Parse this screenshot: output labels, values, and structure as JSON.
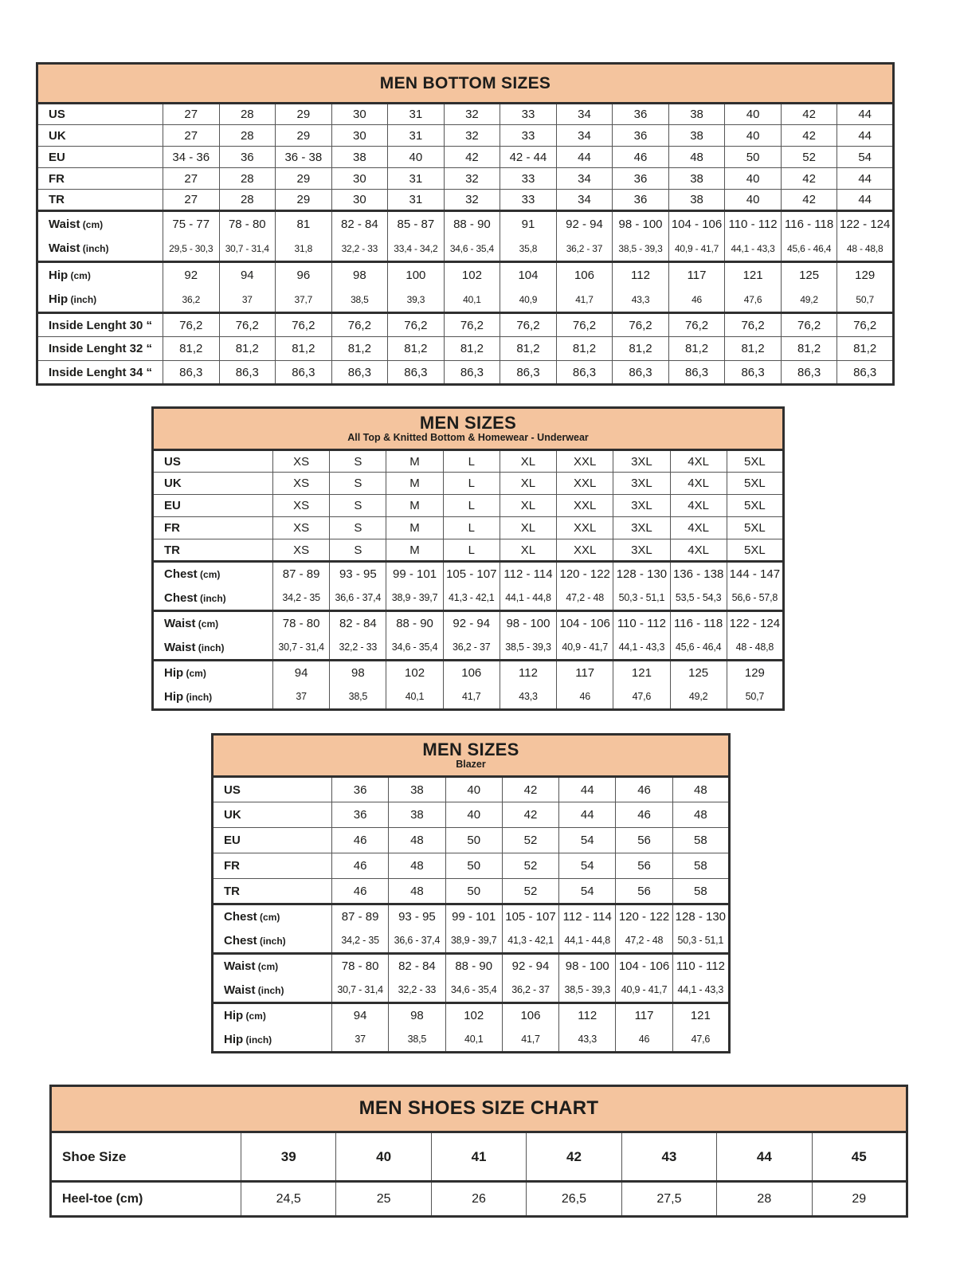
{
  "colors": {
    "header_bg": "#f4c49e",
    "text": "#1d1d1b",
    "border_thin": "#555555",
    "border_strong": "#2f2f2f",
    "page_bg": "#ffffff"
  },
  "tables": {
    "bottoms": {
      "title": "MEN BOTTOM SIZES",
      "rows": [
        {
          "label": "US",
          "kind": "size",
          "values": [
            "27",
            "28",
            "29",
            "30",
            "31",
            "32",
            "33",
            "34",
            "36",
            "38",
            "40",
            "42",
            "44"
          ]
        },
        {
          "label": "UK",
          "kind": "size",
          "values": [
            "27",
            "28",
            "29",
            "30",
            "31",
            "32",
            "33",
            "34",
            "36",
            "38",
            "40",
            "42",
            "44"
          ]
        },
        {
          "label": "EU",
          "kind": "size",
          "values": [
            "34 - 36",
            "36",
            "36 - 38",
            "38",
            "40",
            "42",
            "42 - 44",
            "44",
            "46",
            "48",
            "50",
            "52",
            "54"
          ]
        },
        {
          "label": "FR",
          "kind": "size",
          "values": [
            "27",
            "28",
            "29",
            "30",
            "31",
            "32",
            "33",
            "34",
            "36",
            "38",
            "40",
            "42",
            "44"
          ]
        },
        {
          "label": "TR",
          "kind": "size",
          "values": [
            "27",
            "28",
            "29",
            "30",
            "31",
            "32",
            "33",
            "34",
            "36",
            "38",
            "40",
            "42",
            "44"
          ]
        },
        {
          "label": "Waist",
          "unit": "(cm)",
          "kind": "cm",
          "group": true,
          "values": [
            "75 - 77",
            "78 - 80",
            "81",
            "82 - 84",
            "85 - 87",
            "88 - 90",
            "91",
            "92 - 94",
            "98 - 100",
            "104 - 106",
            "110 - 112",
            "116 - 118",
            "122 - 124"
          ]
        },
        {
          "label": "Waist",
          "unit": "(inch)",
          "kind": "inch",
          "values": [
            "29,5 - 30,3",
            "30,7 - 31,4",
            "31,8",
            "32,2 - 33",
            "33,4 - 34,2",
            "34,6 - 35,4",
            "35,8",
            "36,2 - 37",
            "38,5 - 39,3",
            "40,9 - 41,7",
            "44,1 - 43,3",
            "45,6 - 46,4",
            "48 - 48,8"
          ]
        },
        {
          "label": "Hip",
          "unit": "(cm)",
          "kind": "cm",
          "group": true,
          "values": [
            "92",
            "94",
            "96",
            "98",
            "100",
            "102",
            "104",
            "106",
            "112",
            "117",
            "121",
            "125",
            "129"
          ]
        },
        {
          "label": "Hip",
          "unit": "(inch)",
          "kind": "inch",
          "values": [
            "36,2",
            "37",
            "37,7",
            "38,5",
            "39,3",
            "40,1",
            "40,9",
            "41,7",
            "43,3",
            "46",
            "47,6",
            "49,2",
            "50,7"
          ]
        },
        {
          "label": "Inside Lenght 30 “",
          "kind": "il",
          "group": true,
          "values": [
            "76,2",
            "76,2",
            "76,2",
            "76,2",
            "76,2",
            "76,2",
            "76,2",
            "76,2",
            "76,2",
            "76,2",
            "76,2",
            "76,2",
            "76,2"
          ]
        },
        {
          "label": "Inside Lenght 32 “",
          "kind": "il",
          "values": [
            "81,2",
            "81,2",
            "81,2",
            "81,2",
            "81,2",
            "81,2",
            "81,2",
            "81,2",
            "81,2",
            "81,2",
            "81,2",
            "81,2",
            "81,2"
          ]
        },
        {
          "label": "Inside Lenght 34 “",
          "kind": "il",
          "values": [
            "86,3",
            "86,3",
            "86,3",
            "86,3",
            "86,3",
            "86,3",
            "86,3",
            "86,3",
            "86,3",
            "86,3",
            "86,3",
            "86,3",
            "86,3"
          ]
        }
      ]
    },
    "tops": {
      "title": "MEN SIZES",
      "subtitle": "All Top & Knitted Bottom & Homewear - Underwear",
      "rows": [
        {
          "label": "US",
          "kind": "size",
          "values": [
            "XS",
            "S",
            "M",
            "L",
            "XL",
            "XXL",
            "3XL",
            "4XL",
            "5XL"
          ]
        },
        {
          "label": "UK",
          "kind": "size",
          "values": [
            "XS",
            "S",
            "M",
            "L",
            "XL",
            "XXL",
            "3XL",
            "4XL",
            "5XL"
          ]
        },
        {
          "label": "EU",
          "kind": "size",
          "values": [
            "XS",
            "S",
            "M",
            "L",
            "XL",
            "XXL",
            "3XL",
            "4XL",
            "5XL"
          ]
        },
        {
          "label": "FR",
          "kind": "size",
          "values": [
            "XS",
            "S",
            "M",
            "L",
            "XL",
            "XXL",
            "3XL",
            "4XL",
            "5XL"
          ]
        },
        {
          "label": "TR",
          "kind": "size",
          "values": [
            "XS",
            "S",
            "M",
            "L",
            "XL",
            "XXL",
            "3XL",
            "4XL",
            "5XL"
          ]
        },
        {
          "label": "Chest",
          "unit": "(cm)",
          "kind": "cm",
          "group": true,
          "values": [
            "87 - 89",
            "93 - 95",
            "99 - 101",
            "105 - 107",
            "112 - 114",
            "120 - 122",
            "128 - 130",
            "136 - 138",
            "144 - 147"
          ]
        },
        {
          "label": "Chest",
          "unit": "(inch)",
          "kind": "inch",
          "values": [
            "34,2 - 35",
            "36,6 - 37,4",
            "38,9 - 39,7",
            "41,3 - 42,1",
            "44,1 - 44,8",
            "47,2 - 48",
            "50,3 - 51,1",
            "53,5 - 54,3",
            "56,6 - 57,8"
          ]
        },
        {
          "label": "Waist",
          "unit": "(cm)",
          "kind": "cm",
          "group": true,
          "values": [
            "78 - 80",
            "82 - 84",
            "88 - 90",
            "92 - 94",
            "98 - 100",
            "104 - 106",
            "110 - 112",
            "116 - 118",
            "122 - 124"
          ]
        },
        {
          "label": "Waist",
          "unit": "(inch)",
          "kind": "inch",
          "values": [
            "30,7 - 31,4",
            "32,2 - 33",
            "34,6 - 35,4",
            "36,2 - 37",
            "38,5 - 39,3",
            "40,9 - 41,7",
            "44,1 - 43,3",
            "45,6 - 46,4",
            "48 - 48,8"
          ]
        },
        {
          "label": "Hip",
          "unit": "(cm)",
          "kind": "cm",
          "group": true,
          "values": [
            "94",
            "98",
            "102",
            "106",
            "112",
            "117",
            "121",
            "125",
            "129"
          ]
        },
        {
          "label": "Hip",
          "unit": "(inch)",
          "kind": "inch",
          "values": [
            "37",
            "38,5",
            "40,1",
            "41,7",
            "43,3",
            "46",
            "47,6",
            "49,2",
            "50,7"
          ]
        }
      ]
    },
    "blazer": {
      "title": "MEN SIZES",
      "subtitle": "Blazer",
      "rows": [
        {
          "label": "US",
          "kind": "size",
          "values": [
            "36",
            "38",
            "40",
            "42",
            "44",
            "46",
            "48"
          ]
        },
        {
          "label": "UK",
          "kind": "size",
          "values": [
            "36",
            "38",
            "40",
            "42",
            "44",
            "46",
            "48"
          ]
        },
        {
          "label": "EU",
          "kind": "size",
          "values": [
            "46",
            "48",
            "50",
            "52",
            "54",
            "56",
            "58"
          ]
        },
        {
          "label": "FR",
          "kind": "size",
          "values": [
            "46",
            "48",
            "50",
            "52",
            "54",
            "56",
            "58"
          ]
        },
        {
          "label": "TR",
          "kind": "size",
          "values": [
            "46",
            "48",
            "50",
            "52",
            "54",
            "56",
            "58"
          ]
        },
        {
          "label": "Chest",
          "unit": "(cm)",
          "kind": "cm",
          "group": true,
          "values": [
            "87 - 89",
            "93 - 95",
            "99 - 101",
            "105 - 107",
            "112 - 114",
            "120 - 122",
            "128 - 130"
          ]
        },
        {
          "label": "Chest",
          "unit": "(inch)",
          "kind": "inch",
          "values": [
            "34,2 - 35",
            "36,6 - 37,4",
            "38,9 - 39,7",
            "41,3 - 42,1",
            "44,1 - 44,8",
            "47,2 - 48",
            "50,3 - 51,1"
          ]
        },
        {
          "label": "Waist",
          "unit": "(cm)",
          "kind": "cm",
          "group": true,
          "values": [
            "78 - 80",
            "82 - 84",
            "88 - 90",
            "92 - 94",
            "98 - 100",
            "104 - 106",
            "110 - 112"
          ]
        },
        {
          "label": "Waist",
          "unit": "(inch)",
          "kind": "inch",
          "values": [
            "30,7 - 31,4",
            "32,2 - 33",
            "34,6 - 35,4",
            "36,2 - 37",
            "38,5 - 39,3",
            "40,9 - 41,7",
            "44,1 - 43,3"
          ]
        },
        {
          "label": "Hip",
          "unit": "(cm)",
          "kind": "cm",
          "group": true,
          "values": [
            "94",
            "98",
            "102",
            "106",
            "112",
            "117",
            "121"
          ]
        },
        {
          "label": "Hip",
          "unit": "(inch)",
          "kind": "inch",
          "values": [
            "37",
            "38,5",
            "40,1",
            "41,7",
            "43,3",
            "46",
            "47,6"
          ]
        }
      ]
    },
    "shoes": {
      "title": "MEN SHOES SIZE CHART",
      "rows": [
        {
          "label": "Shoe Size",
          "kind": "shoe",
          "values": [
            "39",
            "40",
            "41",
            "42",
            "43",
            "44",
            "45"
          ]
        },
        {
          "label": "Heel-toe (cm)",
          "kind": "heel",
          "group": true,
          "values": [
            "24,5",
            "25",
            "26",
            "26,5",
            "27,5",
            "28",
            "29"
          ]
        }
      ]
    }
  }
}
